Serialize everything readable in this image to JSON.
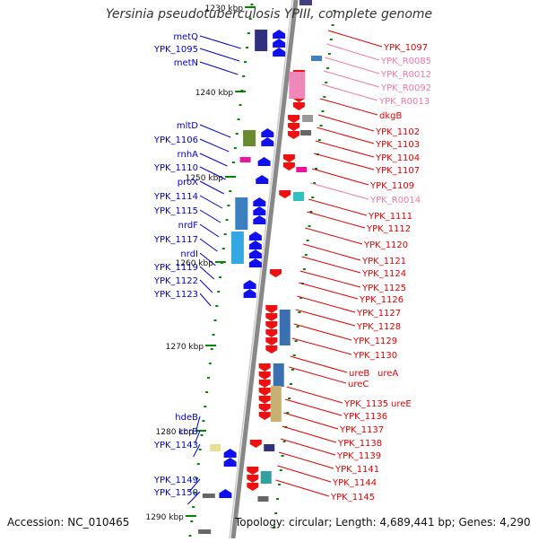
{
  "title": "Yersinia pseudotuberculosis YPIII, complete genome",
  "footer": {
    "accession": "Accession: NC_010465",
    "topology": "Topology: circular; Length: 4,689,441 bp; Genes: 4,290"
  },
  "colors": {
    "left_label": "#0000cc",
    "right_label": "#e00000",
    "rna_label": "#ee77aa",
    "backbone": "#888888",
    "tick": "#008800"
  },
  "scale_labels": [
    "1230 kbp",
    "1240 kbp",
    "1250 kbp",
    "1260 kbp",
    "1270 kbp",
    "1280 kbp",
    "1290 kbp"
  ],
  "left_genes": [
    "metQ",
    "YPK_1095",
    "metN",
    "mltD",
    "YPK_1106",
    "rnhA",
    "YPK_1110",
    "proX",
    "YPK_1114",
    "YPK_1115",
    "nrdF",
    "YPK_1117",
    "nrdI",
    "YPK_1119",
    "YPK_1122",
    "YPK_1123",
    "hdeB",
    "ccrB",
    "YPK_1143",
    "YPK_1149",
    "YPK_1150"
  ],
  "right_genes": [
    {
      "name": "YPK_1097",
      "rna": false
    },
    {
      "name": "YPK_R0085",
      "rna": true
    },
    {
      "name": "YPK_R0012",
      "rna": true
    },
    {
      "name": "YPK_R0092",
      "rna": true
    },
    {
      "name": "YPK_R0013",
      "rna": true
    },
    {
      "name": "dkgB",
      "rna": false
    },
    {
      "name": "YPK_1102",
      "rna": false
    },
    {
      "name": "YPK_1103",
      "rna": false
    },
    {
      "name": "YPK_1104",
      "rna": false
    },
    {
      "name": "YPK_1107",
      "rna": false
    },
    {
      "name": "YPK_1109",
      "rna": false
    },
    {
      "name": "YPK_R0014",
      "rna": true
    },
    {
      "name": "YPK_1111",
      "rna": false
    },
    {
      "name": "YPK_1112",
      "rna": false
    },
    {
      "name": "YPK_1120",
      "rna": false
    },
    {
      "name": "YPK_1121",
      "rna": false
    },
    {
      "name": "YPK_1124",
      "rna": false
    },
    {
      "name": "YPK_1125",
      "rna": false
    },
    {
      "name": "YPK_1126",
      "rna": false
    },
    {
      "name": "YPK_1127",
      "rna": false
    },
    {
      "name": "YPK_1128",
      "rna": false
    },
    {
      "name": "YPK_1129",
      "rna": false
    },
    {
      "name": "YPK_1130",
      "rna": false
    },
    {
      "name": "ureB",
      "rna": false
    },
    {
      "name": "ureA",
      "rna": false
    },
    {
      "name": "ureC",
      "rna": false
    },
    {
      "name": "YPK_1135",
      "rna": false
    },
    {
      "name": "ureE",
      "rna": false
    },
    {
      "name": "YPK_1136",
      "rna": false
    },
    {
      "name": "YPK_1137",
      "rna": false
    },
    {
      "name": "YPK_1138",
      "rna": false
    },
    {
      "name": "YPK_1139",
      "rna": false
    },
    {
      "name": "YPK_1141",
      "rna": false
    },
    {
      "name": "YPK_1144",
      "rna": false
    },
    {
      "name": "YPK_1145",
      "rna": false
    }
  ]
}
